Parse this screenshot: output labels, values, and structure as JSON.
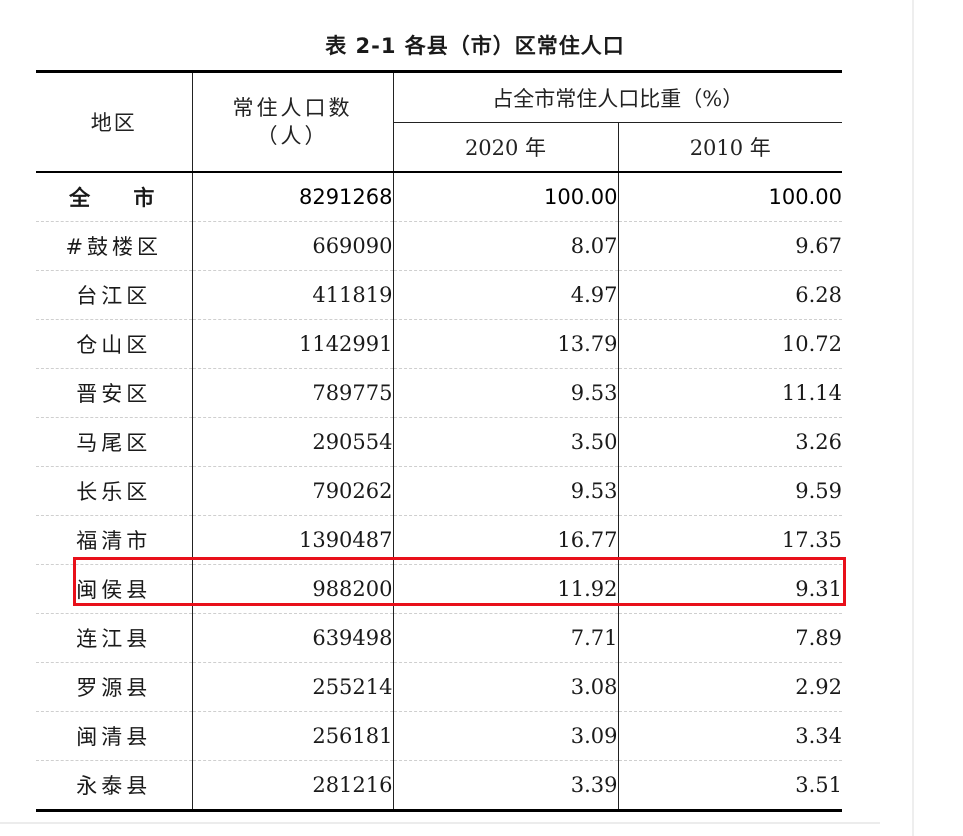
{
  "title": "表 2-1 各县（市）区常住人口",
  "headers": {
    "region": "地区",
    "population_line1": "常住人口数",
    "population_line2": "（人）",
    "share": "占全市常住人口比重（%）",
    "year_2020": "2020 年",
    "year_2010": "2010 年"
  },
  "rows": [
    {
      "region": "全  市",
      "population": "8291268",
      "share_2020": "100.00",
      "share_2010": "100.00"
    },
    {
      "region": "#鼓楼区",
      "population": "669090",
      "share_2020": "8.07",
      "share_2010": "9.67"
    },
    {
      "region": "台江区",
      "population": "411819",
      "share_2020": "4.97",
      "share_2010": "6.28"
    },
    {
      "region": "仓山区",
      "population": "1142991",
      "share_2020": "13.79",
      "share_2010": "10.72"
    },
    {
      "region": "晋安区",
      "population": "789775",
      "share_2020": "9.53",
      "share_2010": "11.14"
    },
    {
      "region": "马尾区",
      "population": "290554",
      "share_2020": "3.50",
      "share_2010": "3.26"
    },
    {
      "region": "长乐区",
      "population": "790262",
      "share_2020": "9.53",
      "share_2010": "9.59"
    },
    {
      "region": "福清市",
      "population": "1390487",
      "share_2020": "16.77",
      "share_2010": "17.35"
    },
    {
      "region": "闽侯县",
      "population": "988200",
      "share_2020": "11.92",
      "share_2010": "9.31"
    },
    {
      "region": "连江县",
      "population": "639498",
      "share_2020": "7.71",
      "share_2010": "7.89"
    },
    {
      "region": "罗源县",
      "population": "255214",
      "share_2020": "3.08",
      "share_2010": "2.92"
    },
    {
      "region": "闽清县",
      "population": "256181",
      "share_2020": "3.09",
      "share_2010": "3.34"
    },
    {
      "region": "永泰县",
      "population": "281216",
      "share_2020": "3.39",
      "share_2010": "3.51"
    }
  ],
  "highlight": {
    "color": "#e8101a",
    "row_region": "闽侯县"
  }
}
